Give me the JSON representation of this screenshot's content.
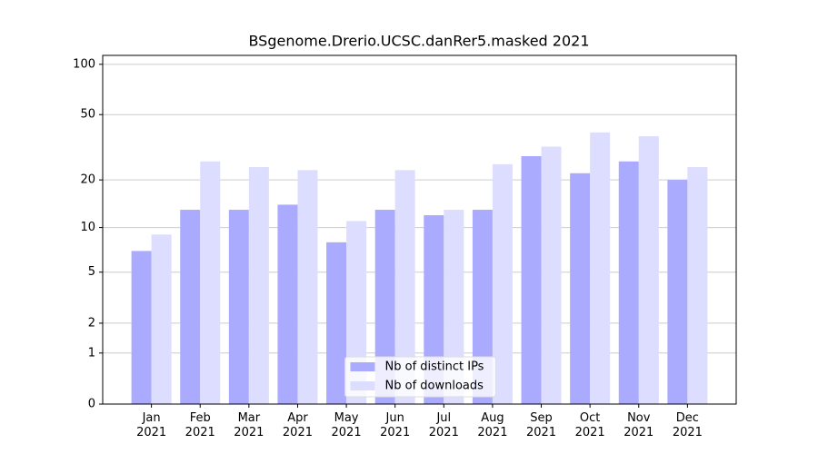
{
  "chart_data": {
    "type": "bar",
    "title": "BSgenome.Drerio.UCSC.danRer5.masked 2021",
    "categories": [
      "Jan\n2021",
      "Feb\n2021",
      "Mar\n2021",
      "Apr\n2021",
      "May\n2021",
      "Jun\n2021",
      "Jul\n2021",
      "Aug\n2021",
      "Sep\n2021",
      "Oct\n2021",
      "Nov\n2021",
      "Dec\n2021"
    ],
    "series": [
      {
        "name": "Nb of distinct IPs",
        "color": "#aaaaff",
        "values": [
          7,
          13,
          13,
          14,
          8,
          13,
          12,
          13,
          28,
          22,
          26,
          20
        ]
      },
      {
        "name": "Nb of downloads",
        "color": "#ddddff",
        "values": [
          9,
          26,
          24,
          23,
          11,
          23,
          13,
          25,
          32,
          39,
          37,
          24
        ]
      }
    ],
    "yscale": "log1p",
    "ylim": [
      0,
      113
    ],
    "yticks": [
      0,
      1,
      2,
      5,
      10,
      20,
      50,
      100
    ],
    "grid": true,
    "legend": "lower center"
  }
}
